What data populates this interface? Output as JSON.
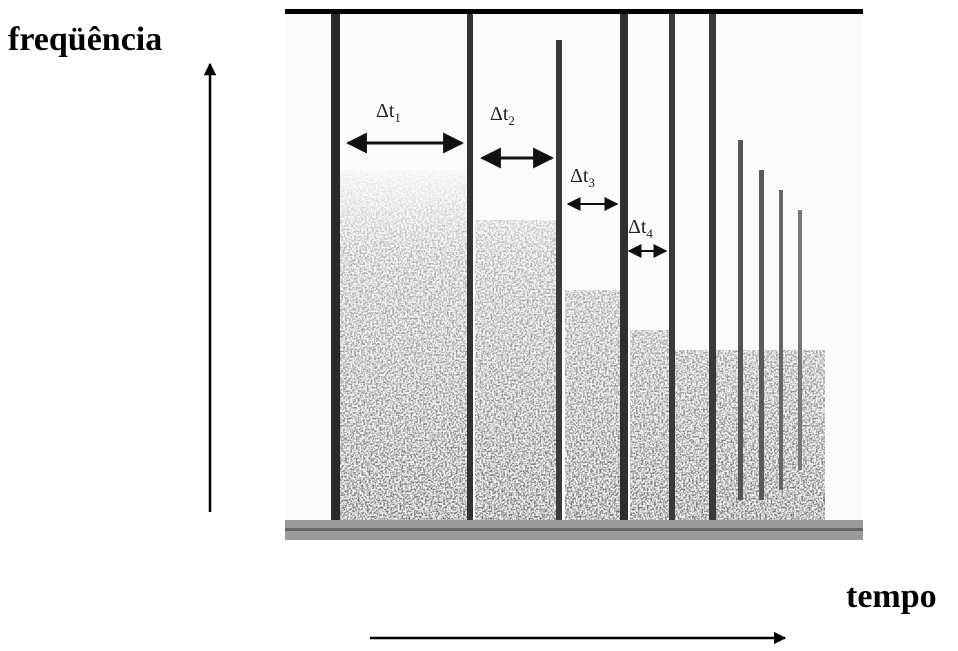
{
  "axes": {
    "y_label": "freqüência",
    "x_label": "tempo"
  },
  "intervals": [
    {
      "symbol": "Δt",
      "subscript": "1"
    },
    {
      "symbol": "Δt",
      "subscript": "2"
    },
    {
      "symbol": "Δt",
      "subscript": "3"
    },
    {
      "symbol": "Δt",
      "subscript": "4"
    }
  ]
}
